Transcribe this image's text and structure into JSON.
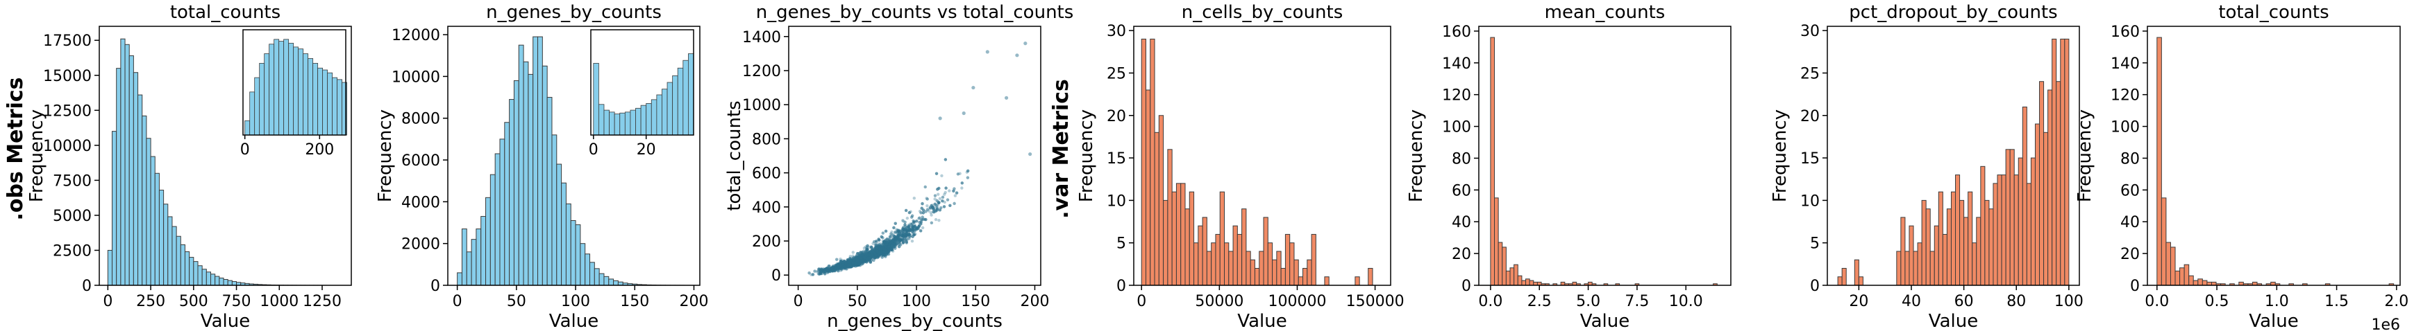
{
  "row_labels": [
    ".obs Metrics",
    ".var Metrics"
  ],
  "chart_data": [
    {
      "type": "bar",
      "title": "total_counts",
      "xlabel": "Value",
      "ylabel": "Frequency",
      "xlim": [
        -50,
        1420
      ],
      "ylim": [
        0,
        18500
      ],
      "xticks": [
        0,
        250,
        500,
        750,
        1000,
        1250
      ],
      "yticks": [
        0,
        2500,
        5000,
        7500,
        10000,
        12500,
        15000,
        17500
      ],
      "bin_width": 25,
      "bin_starts": [
        0,
        25,
        50,
        75,
        100,
        125,
        150,
        175,
        200,
        225,
        250,
        275,
        300,
        325,
        350,
        375,
        400,
        425,
        450,
        475,
        500,
        525,
        550,
        575,
        600,
        625,
        650,
        675,
        700,
        725,
        750,
        775,
        800,
        825,
        850,
        875,
        900,
        925,
        950,
        975,
        1000,
        1025,
        1050,
        1075,
        1100,
        1125,
        1150,
        1175,
        1200,
        1225,
        1250,
        1275,
        1300,
        1325
      ],
      "values": [
        2500,
        11000,
        15500,
        17600,
        17200,
        16400,
        15200,
        13600,
        12100,
        10500,
        9200,
        8000,
        6800,
        5800,
        4900,
        4200,
        3500,
        2900,
        2400,
        2000,
        1700,
        1400,
        1150,
        950,
        800,
        640,
        520,
        420,
        340,
        270,
        210,
        170,
        130,
        100,
        80,
        60,
        45,
        35,
        25,
        20,
        15,
        12,
        10,
        8,
        6,
        5,
        4,
        3,
        3,
        2,
        2,
        1,
        1,
        1
      ],
      "fill": "#87CEEB",
      "edge": "#3a3a3a",
      "inset": {
        "xlim": [
          -5,
          270
        ],
        "xticks": [
          0,
          200
        ],
        "bin_starts": [
          0,
          13,
          26,
          39,
          52,
          65,
          78,
          91,
          104,
          117,
          130,
          143,
          156,
          169,
          182,
          195,
          208,
          221,
          234,
          247,
          260
        ],
        "values": [
          15,
          45,
          60,
          75,
          85,
          95,
          100,
          98,
          100,
          96,
          92,
          90,
          85,
          80,
          75,
          70,
          68,
          65,
          60,
          58,
          55
        ],
        "ymax": 110
      }
    },
    {
      "type": "bar",
      "title": "n_genes_by_counts",
      "xlabel": "Value",
      "ylabel": "Frequency",
      "xlim": [
        -8,
        205
      ],
      "ylim": [
        0,
        12400
      ],
      "xticks": [
        0,
        50,
        100,
        150,
        200
      ],
      "yticks": [
        0,
        2000,
        4000,
        6000,
        8000,
        10000,
        12000
      ],
      "bin_width": 4,
      "bin_starts": [
        0,
        4,
        8,
        12,
        16,
        20,
        24,
        28,
        32,
        36,
        40,
        44,
        48,
        52,
        56,
        60,
        64,
        68,
        72,
        76,
        80,
        84,
        88,
        92,
        96,
        100,
        104,
        108,
        112,
        116,
        120,
        124,
        128,
        132,
        136,
        140,
        144,
        148,
        152,
        156,
        160,
        164,
        168,
        172,
        176,
        180,
        184,
        188
      ],
      "values": [
        600,
        2700,
        1600,
        2200,
        2700,
        3300,
        4200,
        5300,
        6300,
        7000,
        7800,
        8900,
        9800,
        11500,
        10700,
        10100,
        11900,
        11900,
        10500,
        9000,
        7200,
        5800,
        4900,
        3900,
        3100,
        2900,
        2000,
        1500,
        1100,
        800,
        560,
        420,
        300,
        220,
        160,
        110,
        80,
        60,
        40,
        30,
        20,
        15,
        10,
        8,
        5,
        4,
        3,
        2
      ],
      "fill": "#87CEEB",
      "edge": "#3a3a3a",
      "inset": {
        "xlim": [
          -1,
          38
        ],
        "xticks": [
          0,
          20
        ],
        "bin_starts": [
          0,
          2,
          4,
          6,
          8,
          10,
          12,
          14,
          16,
          18,
          20,
          22,
          24,
          26,
          28,
          30,
          32,
          34,
          36
        ],
        "values": [
          75,
          32,
          26,
          24,
          22,
          23,
          24,
          26,
          28,
          31,
          33,
          37,
          42,
          48,
          55,
          62,
          70,
          78,
          85
        ],
        "ymax": 110
      }
    },
    {
      "type": "scatter",
      "title": "n_genes_by_counts vs total_counts",
      "xlabel": "n_genes_by_counts",
      "ylabel": "total_counts",
      "xlim": [
        -8,
        205
      ],
      "ylim": [
        -60,
        1460
      ],
      "xticks": [
        0,
        50,
        100,
        150,
        200
      ],
      "yticks": [
        0,
        200,
        400,
        600,
        800,
        1000,
        1200,
        1400
      ],
      "color": "#2f7390",
      "trend": [
        [
          0,
          0
        ],
        [
          25,
          30
        ],
        [
          50,
          80
        ],
        [
          75,
          160
        ],
        [
          100,
          290
        ],
        [
          125,
          440
        ],
        [
          150,
          620
        ],
        [
          175,
          800
        ],
        [
          200,
          980
        ]
      ],
      "outliers": [
        [
          192,
          1360
        ],
        [
          185,
          1290
        ],
        [
          160,
          1310
        ],
        [
          148,
          1100
        ],
        [
          176,
          1040
        ],
        [
          140,
          950
        ],
        [
          120,
          920
        ],
        [
          196,
          710
        ]
      ]
    },
    {
      "type": "bar",
      "title": "n_cells_by_counts",
      "xlabel": "Value",
      "ylabel": "Frequency",
      "xlim": [
        -5000,
        160000
      ],
      "ylim": [
        0,
        30.5
      ],
      "xticks": [
        0,
        50000,
        100000,
        150000
      ],
      "yticks": [
        0,
        5,
        10,
        15,
        20,
        25,
        30
      ],
      "bin_width": 2800,
      "bin_starts": [
        0,
        2800,
        5600,
        8400,
        11200,
        14000,
        16800,
        19600,
        22400,
        25200,
        28000,
        30800,
        33600,
        36400,
        39200,
        42000,
        44800,
        47600,
        50400,
        53200,
        56000,
        58800,
        61600,
        64400,
        67200,
        70000,
        72800,
        75600,
        78400,
        81200,
        84000,
        86800,
        89600,
        92400,
        95200,
        98000,
        100800,
        103600,
        106400,
        109200,
        112000,
        114800,
        117600,
        120400,
        123200,
        126000,
        128800,
        131600,
        134400,
        137200,
        140000,
        142800,
        145600,
        148400
      ],
      "values": [
        29,
        23,
        29,
        18,
        20,
        10,
        16,
        11,
        12,
        12,
        9,
        11,
        5,
        7,
        8,
        4,
        5,
        6,
        11,
        5,
        4,
        7,
        6,
        9,
        4,
        3,
        2,
        4,
        8,
        5,
        3,
        4,
        2,
        6,
        5,
        3,
        1,
        2,
        3,
        6,
        0,
        0,
        1,
        0,
        0,
        0,
        0,
        0,
        0,
        1,
        0,
        0,
        2,
        0
      ],
      "fill": "#F08A64",
      "edge": "#3a3a3a"
    },
    {
      "type": "bar",
      "title": "mean_counts",
      "xlabel": "Value",
      "ylabel": "Frequency",
      "xlim": [
        -0.6,
        12.3
      ],
      "ylim": [
        0,
        163
      ],
      "xticks": [
        0,
        2.5,
        5.0,
        7.5,
        10.0
      ],
      "xtick_labels": [
        "0.0",
        "2.5",
        "5.0",
        "7.5",
        "10.0"
      ],
      "yticks": [
        0,
        20,
        40,
        60,
        80,
        100,
        120,
        140,
        160
      ],
      "bin_width": 0.2,
      "bin_starts": [
        0.0,
        0.2,
        0.4,
        0.6,
        0.8,
        1.0,
        1.2,
        1.4,
        1.6,
        1.8,
        2.0,
        2.2,
        2.4,
        2.6,
        2.8,
        3.0,
        3.2,
        3.4,
        3.6,
        3.8,
        4.0,
        4.2,
        4.4,
        4.6,
        4.8,
        5.0,
        5.2,
        5.4,
        5.6,
        5.8,
        6.0,
        6.2,
        6.4,
        6.6,
        6.8,
        7.0,
        7.2,
        7.4,
        7.6,
        7.8,
        8.0,
        8.2,
        8.4,
        8.6,
        8.8,
        9.0,
        9.2,
        9.4,
        9.6,
        9.8,
        10.0,
        10.2,
        10.4,
        10.6,
        10.8,
        11.0,
        11.2,
        11.4
      ],
      "values": [
        156,
        55,
        27,
        24,
        9,
        11,
        13,
        6,
        3,
        4,
        3,
        2,
        2,
        1,
        1,
        0,
        1,
        0,
        2,
        1,
        1,
        2,
        1,
        0,
        1,
        2,
        1,
        0,
        0,
        1,
        0,
        0,
        1,
        0,
        0,
        0,
        0,
        1,
        0,
        0,
        0,
        0,
        0,
        0,
        0,
        0,
        0,
        0,
        0,
        0,
        0,
        0,
        0,
        0,
        0,
        0,
        0,
        1
      ],
      "fill": "#F08A64",
      "edge": "#3a3a3a"
    },
    {
      "type": "bar",
      "title": "pct_dropout_by_counts",
      "xlabel": "Value",
      "ylabel": "Frequency",
      "xlim": [
        8,
        104
      ],
      "ylim": [
        0,
        30.5
      ],
      "xticks": [
        20,
        40,
        60,
        80,
        100
      ],
      "yticks": [
        0,
        5,
        10,
        15,
        20,
        25,
        30
      ],
      "bin_width": 1.6,
      "bin_starts": [
        12.0,
        13.6,
        15.2,
        16.8,
        18.4,
        20.0,
        21.6,
        23.2,
        24.8,
        26.4,
        28.0,
        29.6,
        31.2,
        32.8,
        34.4,
        36.0,
        37.6,
        39.2,
        40.8,
        42.4,
        44.0,
        45.6,
        47.2,
        48.8,
        50.4,
        52.0,
        53.6,
        55.2,
        56.8,
        58.4,
        60.0,
        61.6,
        63.2,
        64.8,
        66.4,
        68.0,
        69.6,
        71.2,
        72.8,
        74.4,
        76.0,
        77.6,
        79.2,
        80.8,
        82.4,
        84.0,
        85.6,
        87.2,
        88.8,
        90.4,
        92.0,
        93.6,
        95.2,
        96.8,
        98.4
      ],
      "values": [
        1,
        2,
        0,
        0,
        3,
        1,
        0,
        0,
        0,
        0,
        0,
        0,
        0,
        0,
        4,
        8,
        4,
        7,
        4,
        5,
        10,
        9,
        4,
        7,
        11,
        6,
        9,
        11,
        13,
        10,
        8,
        11,
        5,
        8,
        14,
        10,
        9,
        12,
        13,
        13,
        16,
        16,
        13,
        15,
        21,
        12,
        15,
        19,
        24,
        18,
        23,
        29,
        24,
        29,
        29
      ],
      "fill": "#F08A64",
      "edge": "#3a3a3a"
    },
    {
      "type": "bar",
      "title": "total_counts",
      "xlabel": "Value",
      "ylabel": "Frequency",
      "offset_text": "1e6",
      "xlim": [
        -0.08,
        2.03
      ],
      "ylim": [
        0,
        163
      ],
      "xticks": [
        0.0,
        0.5,
        1.0,
        1.5,
        2.0
      ],
      "xtick_labels": [
        "0.0",
        "0.5",
        "1.0",
        "1.5",
        "2.0"
      ],
      "yticks": [
        0,
        20,
        40,
        60,
        80,
        100,
        120,
        140,
        160
      ],
      "bin_width": 0.038,
      "bin_starts": [
        0.0,
        0.038,
        0.076,
        0.114,
        0.152,
        0.19,
        0.228,
        0.266,
        0.304,
        0.342,
        0.38,
        0.418,
        0.456,
        0.494,
        0.532,
        0.57,
        0.608,
        0.646,
        0.684,
        0.722,
        0.76,
        0.798,
        0.836,
        0.874,
        0.912,
        0.95,
        0.988,
        1.026,
        1.064,
        1.102,
        1.14,
        1.178,
        1.216,
        1.254,
        1.292,
        1.33,
        1.368,
        1.406,
        1.444,
        1.482,
        1.52,
        1.558,
        1.596,
        1.634,
        1.672,
        1.71,
        1.748,
        1.786,
        1.824,
        1.862,
        1.9,
        1.938
      ],
      "values": [
        156,
        55,
        27,
        24,
        9,
        11,
        13,
        6,
        3,
        4,
        3,
        2,
        2,
        1,
        1,
        0,
        1,
        0,
        2,
        1,
        1,
        2,
        1,
        0,
        1,
        2,
        1,
        0,
        0,
        1,
        0,
        0,
        1,
        0,
        0,
        0,
        0,
        1,
        0,
        0,
        0,
        0,
        0,
        0,
        0,
        0,
        0,
        0,
        0,
        0,
        0,
        1
      ],
      "fill": "#F08A64",
      "edge": "#3a3a3a"
    }
  ]
}
